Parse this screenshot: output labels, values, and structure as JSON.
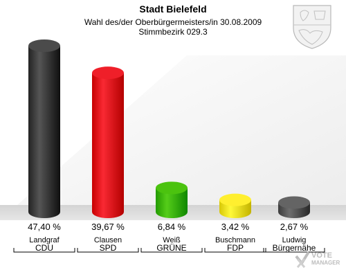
{
  "chart_data": {
    "type": "bar",
    "title": "Stadt Bielefeld",
    "subtitle_lines": [
      "Wahl des/der Oberbürgermeisters/in 30.08.2009",
      "Stimmbezirk 029.3"
    ],
    "categories": [
      "Landgraf",
      "Clausen",
      "Weiß",
      "Buschmann",
      "Ludwig"
    ],
    "parties": [
      "CDU",
      "SPD",
      "GRÜNE",
      "FDP",
      "Bürgernähe"
    ],
    "values": [
      47.4,
      39.67,
      6.84,
      3.42,
      2.67
    ],
    "value_labels": [
      "47,40 %",
      "39,67 %",
      "6,84 %",
      "3,42 %",
      "2,67 %"
    ],
    "colors": [
      "#3c3c3c",
      "#e0101a",
      "#3cb400",
      "#f0e020",
      "#555555"
    ],
    "ylim": [
      0,
      47.4
    ],
    "grid": false,
    "legend": "none"
  },
  "branding": {
    "watermark": "VOTE MANAGER",
    "emblem": "coat-of-arms-icon"
  }
}
